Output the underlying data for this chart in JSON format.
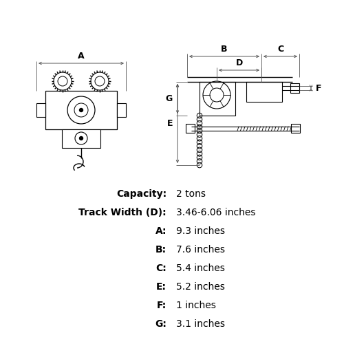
{
  "bg_color": "#ffffff",
  "line_color": "#000000",
  "dim_color": "#555555",
  "specs": [
    {
      "label": "Capacity:",
      "value": "2 tons"
    },
    {
      "label": "Track Width (D):",
      "value": "3.46-6.06 inches"
    },
    {
      "label": "A:",
      "value": "9.3 inches"
    },
    {
      "label": "B:",
      "value": "7.6 inches"
    },
    {
      "label": "C:",
      "value": "5.4 inches"
    },
    {
      "label": "E:",
      "value": "5.2 inches"
    },
    {
      "label": "F:",
      "value": "1 inches"
    },
    {
      "label": "G:",
      "value": "3.1 inches"
    }
  ],
  "fig_width": 5.0,
  "fig_height": 5.0,
  "dpi": 100
}
